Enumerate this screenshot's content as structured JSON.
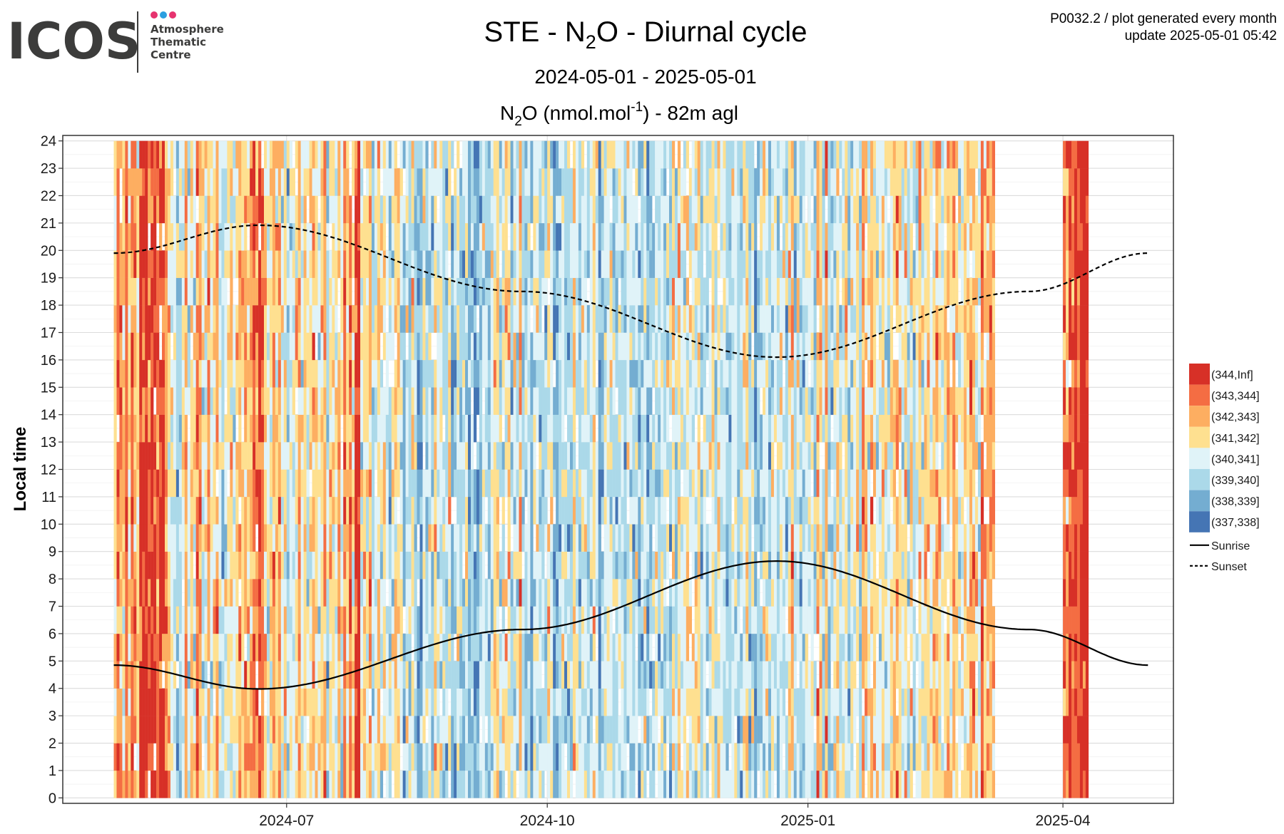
{
  "logo": {
    "name": "ICOS",
    "lines": [
      "Atmosphere",
      "Thematic",
      "Centre"
    ],
    "dot_colors": [
      "#e6336f",
      "#2c9fe0",
      "#e6336f"
    ]
  },
  "header": {
    "title_pre": "STE - N",
    "title_sub": "2",
    "title_post": "O - Diurnal cycle",
    "date_range": "2024-05-01 - 2025-05-01",
    "subtitle_pre": "N",
    "subtitle_sub": "2",
    "subtitle_mid": "O (nmol.mol",
    "subtitle_sup": "-1",
    "subtitle_post": ") - 82m agl",
    "meta_line1": "P0032.2 / plot generated every month",
    "meta_line2": "update  2025-05-01 05:42"
  },
  "chart_data": {
    "type": "heatmap",
    "x_axis": {
      "min": "2024-04-13",
      "max": "2025-05-10",
      "ticks": [
        "2024-07",
        "2024-10",
        "2025-01",
        "2025-04"
      ],
      "tick_dates": [
        "2024-07-01",
        "2024-10-01",
        "2025-01-01",
        "2025-04-01"
      ]
    },
    "y_axis": {
      "label": "Local time",
      "min": -0.2,
      "max": 24.2,
      "ticks": [
        0,
        1,
        2,
        3,
        4,
        5,
        6,
        7,
        8,
        9,
        10,
        11,
        12,
        13,
        14,
        15,
        16,
        17,
        18,
        19,
        20,
        21,
        22,
        23,
        24
      ]
    },
    "data_start": "2024-05-01",
    "data_end": "2025-05-01",
    "missing_data": {
      "start": "2025-03-08",
      "end": "2025-03-31"
    },
    "legend": {
      "placement": "right",
      "bins": [
        {
          "label": "(344,Inf]",
          "color": "#d73027"
        },
        {
          "label": "(343,344]",
          "color": "#f46d43"
        },
        {
          "label": "(342,343]",
          "color": "#fdae61"
        },
        {
          "label": "(341,342]",
          "color": "#fee090"
        },
        {
          "label": "(340,341]",
          "color": "#e0f3f8"
        },
        {
          "label": "(339,340]",
          "color": "#abd9e9"
        },
        {
          "label": "(338,339]",
          "color": "#74add1"
        },
        {
          "label": "(337,338]",
          "color": "#4575b4"
        }
      ],
      "lines": [
        {
          "label": "Sunrise",
          "style": "solid"
        },
        {
          "label": "Sunset",
          "style": "dashed"
        }
      ]
    },
    "daily_mean_bin_index": [
      3,
      1,
      2,
      3,
      1,
      3,
      1,
      2,
      3,
      0,
      0,
      0,
      1,
      0,
      0,
      1,
      0,
      0,
      2,
      3,
      4,
      4,
      5,
      5,
      4,
      2,
      4,
      3,
      4,
      1,
      2,
      4,
      4,
      2,
      4,
      3,
      2,
      4,
      5,
      4,
      3,
      3,
      4,
      3,
      2,
      3,
      2,
      3,
      2,
      1,
      2,
      0,
      1,
      3,
      4,
      3,
      2,
      3,
      2,
      4,
      3,
      5,
      4,
      4,
      3,
      2,
      4,
      3,
      4,
      3,
      2,
      3,
      4,
      3,
      2,
      5,
      3,
      3,
      4,
      2,
      4,
      1,
      3,
      1,
      3,
      0,
      0,
      4,
      3,
      3,
      2,
      5,
      4,
      3,
      4,
      3,
      4,
      5,
      4,
      3,
      3,
      4,
      6,
      4,
      5,
      3,
      5,
      6,
      6,
      4,
      5,
      4,
      5,
      3,
      4,
      4,
      5,
      5,
      3,
      6,
      5,
      4,
      5,
      5,
      4,
      6,
      5,
      6,
      6,
      5,
      4,
      5,
      5,
      4,
      3,
      3,
      5,
      4,
      3,
      3,
      5,
      4,
      4,
      2,
      5,
      5,
      4,
      6,
      4,
      4,
      5,
      5,
      5,
      3,
      4,
      6,
      6,
      5,
      4,
      5,
      5,
      5,
      3,
      4,
      5,
      4,
      4,
      5,
      4,
      3,
      4,
      6,
      5,
      4,
      4,
      4,
      5,
      5,
      4,
      4,
      5,
      4,
      4,
      5,
      4,
      6,
      5,
      4,
      6,
      5,
      5,
      4,
      5,
      4,
      5,
      4,
      5,
      3,
      5,
      3,
      4,
      4,
      3,
      4,
      4,
      4,
      3,
      5,
      4,
      5,
      4,
      3,
      5,
      3,
      4,
      4,
      5,
      5,
      4,
      4,
      5,
      5,
      4,
      3,
      5,
      4,
      6,
      5,
      5,
      4,
      4,
      5,
      4,
      4,
      5,
      4,
      4,
      5,
      3,
      2,
      5,
      4,
      5,
      5,
      4,
      4,
      4,
      5,
      2,
      3,
      5,
      2,
      5,
      5,
      4,
      3,
      5,
      4,
      3,
      5,
      4,
      4,
      3,
      5,
      2,
      3,
      4,
      2,
      3,
      4,
      4,
      3,
      4,
      4,
      3,
      3,
      2,
      3,
      4,
      3,
      5,
      3,
      5,
      4,
      3,
      4,
      3,
      3,
      4,
      3,
      2,
      3,
      4,
      3,
      2,
      3,
      2,
      3,
      4,
      4,
      3,
      3,
      2,
      2,
      3,
      4,
      1,
      3,
      2,
      2,
      2,
      3,
      2,
      1,
      1,
      0,
      3,
      4,
      0,
      4,
      5,
      3,
      2,
      1,
      2,
      2,
      1,
      1,
      0,
      2,
      2,
      3,
      1,
      2,
      0,
      1,
      2,
      0,
      1,
      0,
      1,
      0,
      0,
      0
    ],
    "sunrise_hours": {
      "2024-05-01": 4.85,
      "2024-06-21": 3.98,
      "2024-09-22": 6.15,
      "2024-12-21": 8.65,
      "2025-03-20": 6.15,
      "2025-05-01": 4.85
    },
    "sunset_hours": {
      "2024-05-01": 19.9,
      "2024-06-21": 20.92,
      "2024-09-22": 18.5,
      "2024-12-21": 16.1,
      "2025-03-20": 18.5,
      "2025-05-01": 19.9
    }
  }
}
